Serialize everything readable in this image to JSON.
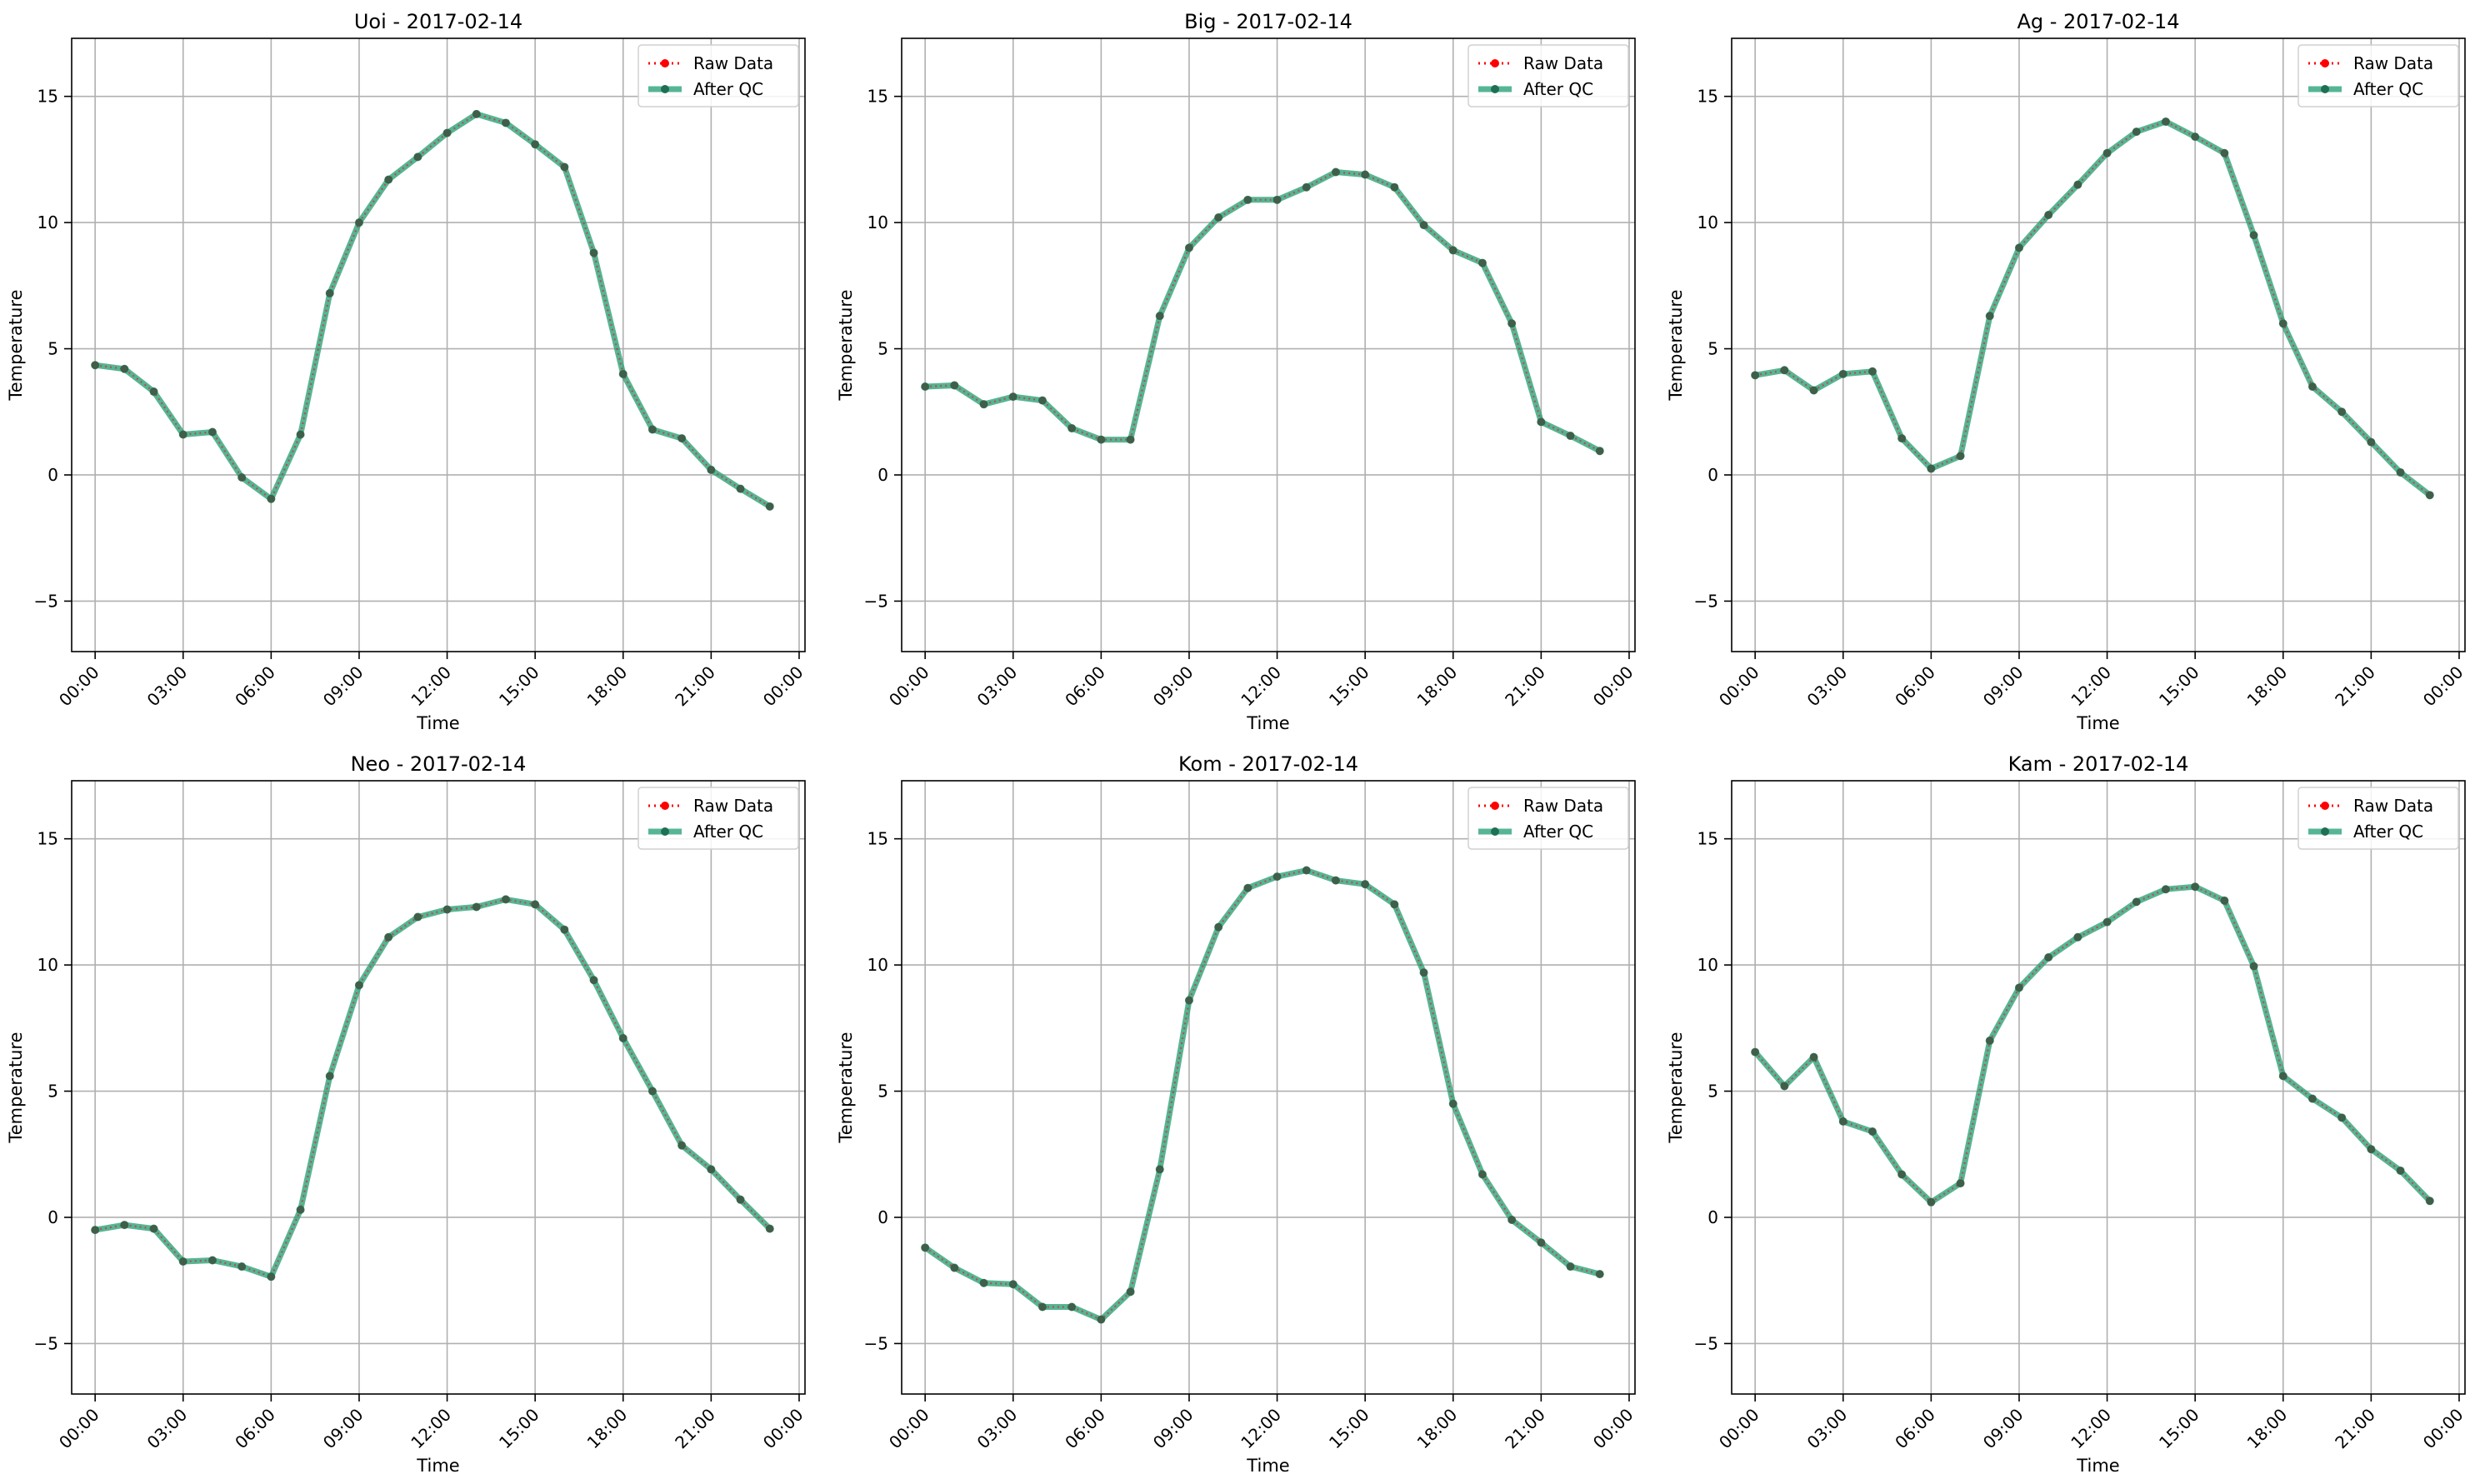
{
  "figure": {
    "layout": "2x3 grid"
  },
  "legend": {
    "raw_label": "Raw Data",
    "qc_label": "After QC"
  },
  "colors": {
    "raw": "#ff0000",
    "qc_line": "#2ca27a",
    "qc_marker": "#1f6f55",
    "grid": "#b0b0b0",
    "axes": "#000000"
  },
  "chart_data": [
    {
      "type": "line",
      "title": "Uoi - 2017-02-14",
      "xlabel": "Time",
      "ylabel": "Temperature",
      "x": [
        "00:00",
        "01:00",
        "02:00",
        "03:00",
        "04:00",
        "05:00",
        "06:00",
        "07:00",
        "08:00",
        "09:00",
        "10:00",
        "11:00",
        "12:00",
        "13:00",
        "14:00",
        "15:00",
        "16:00",
        "17:00",
        "18:00",
        "19:00",
        "20:00",
        "21:00",
        "22:00",
        "23:00"
      ],
      "x_ticks": [
        "00:00",
        "03:00",
        "06:00",
        "09:00",
        "12:00",
        "15:00",
        "18:00",
        "21:00",
        "00:00"
      ],
      "y_ticks": [
        -5,
        0,
        5,
        10,
        15
      ],
      "ylim": [
        -7,
        17.3
      ],
      "grid": true,
      "legend_position": "top-right",
      "series": [
        {
          "name": "Raw Data",
          "values": [
            4.35,
            4.2,
            3.3,
            1.6,
            1.7,
            -0.1,
            -0.95,
            1.6,
            7.2,
            10.0,
            11.7,
            12.6,
            13.55,
            14.3,
            13.95,
            13.1,
            12.2,
            8.8,
            4.0,
            1.8,
            1.45,
            0.2,
            -0.55,
            -1.25
          ]
        },
        {
          "name": "After QC",
          "values": [
            4.35,
            4.2,
            3.3,
            1.6,
            1.7,
            -0.1,
            -0.95,
            1.6,
            7.2,
            10.0,
            11.7,
            12.6,
            13.55,
            14.3,
            13.95,
            13.1,
            12.2,
            8.8,
            4.0,
            1.8,
            1.45,
            0.2,
            -0.55,
            -1.25
          ]
        }
      ]
    },
    {
      "type": "line",
      "title": "Big - 2017-02-14",
      "xlabel": "Time",
      "ylabel": "Temperature",
      "x": [
        "00:00",
        "01:00",
        "02:00",
        "03:00",
        "04:00",
        "05:00",
        "06:00",
        "07:00",
        "08:00",
        "09:00",
        "10:00",
        "11:00",
        "12:00",
        "13:00",
        "14:00",
        "15:00",
        "16:00",
        "17:00",
        "18:00",
        "19:00",
        "20:00",
        "21:00",
        "22:00",
        "23:00"
      ],
      "x_ticks": [
        "00:00",
        "03:00",
        "06:00",
        "09:00",
        "12:00",
        "15:00",
        "18:00",
        "21:00",
        "00:00"
      ],
      "y_ticks": [
        -5,
        0,
        5,
        10,
        15
      ],
      "ylim": [
        -7,
        17.3
      ],
      "grid": true,
      "legend_position": "top-right",
      "series": [
        {
          "name": "Raw Data",
          "values": [
            3.5,
            3.55,
            2.8,
            3.1,
            2.95,
            1.85,
            1.4,
            1.4,
            6.3,
            9.0,
            10.2,
            10.9,
            10.9,
            11.4,
            12.0,
            11.9,
            11.4,
            9.9,
            8.9,
            8.4,
            6.0,
            2.1,
            1.55,
            0.95
          ]
        },
        {
          "name": "After QC",
          "values": [
            3.5,
            3.55,
            2.8,
            3.1,
            2.95,
            1.85,
            1.4,
            1.4,
            6.3,
            9.0,
            10.2,
            10.9,
            10.9,
            11.4,
            12.0,
            11.9,
            11.4,
            9.9,
            8.9,
            8.4,
            6.0,
            2.1,
            1.55,
            0.95
          ]
        }
      ]
    },
    {
      "type": "line",
      "title": "Ag - 2017-02-14",
      "xlabel": "Time",
      "ylabel": "Temperature",
      "x": [
        "00:00",
        "01:00",
        "02:00",
        "03:00",
        "04:00",
        "05:00",
        "06:00",
        "07:00",
        "08:00",
        "09:00",
        "10:00",
        "11:00",
        "12:00",
        "13:00",
        "14:00",
        "15:00",
        "16:00",
        "17:00",
        "18:00",
        "19:00",
        "20:00",
        "21:00",
        "22:00",
        "23:00"
      ],
      "x_ticks": [
        "00:00",
        "03:00",
        "06:00",
        "09:00",
        "12:00",
        "15:00",
        "18:00",
        "21:00",
        "00:00"
      ],
      "y_ticks": [
        -5,
        0,
        5,
        10,
        15
      ],
      "ylim": [
        -7,
        17.3
      ],
      "grid": true,
      "legend_position": "top-right",
      "series": [
        {
          "name": "Raw Data",
          "values": [
            3.95,
            4.15,
            3.35,
            4.0,
            4.1,
            1.45,
            0.25,
            0.75,
            6.3,
            9.0,
            10.3,
            11.5,
            12.75,
            13.6,
            14.0,
            13.4,
            12.75,
            9.5,
            6.0,
            3.5,
            2.5,
            1.3,
            0.1,
            -0.8
          ]
        },
        {
          "name": "After QC",
          "values": [
            3.95,
            4.15,
            3.35,
            4.0,
            4.1,
            1.45,
            0.25,
            0.75,
            6.3,
            9.0,
            10.3,
            11.5,
            12.75,
            13.6,
            14.0,
            13.4,
            12.75,
            9.5,
            6.0,
            3.5,
            2.5,
            1.3,
            0.1,
            -0.8
          ]
        }
      ]
    },
    {
      "type": "line",
      "title": "Neo - 2017-02-14",
      "xlabel": "Time",
      "ylabel": "Temperature",
      "x": [
        "00:00",
        "01:00",
        "02:00",
        "03:00",
        "04:00",
        "05:00",
        "06:00",
        "07:00",
        "08:00",
        "09:00",
        "10:00",
        "11:00",
        "12:00",
        "13:00",
        "14:00",
        "15:00",
        "16:00",
        "17:00",
        "18:00",
        "19:00",
        "20:00",
        "21:00",
        "22:00",
        "23:00"
      ],
      "x_ticks": [
        "00:00",
        "03:00",
        "06:00",
        "09:00",
        "12:00",
        "15:00",
        "18:00",
        "21:00",
        "00:00"
      ],
      "y_ticks": [
        -5,
        0,
        5,
        10,
        15
      ],
      "ylim": [
        -7,
        17.3
      ],
      "grid": true,
      "legend_position": "top-right",
      "series": [
        {
          "name": "Raw Data",
          "values": [
            -0.5,
            -0.3,
            -0.45,
            -1.75,
            -1.7,
            -1.95,
            -2.35,
            0.3,
            5.6,
            9.2,
            11.1,
            11.9,
            12.2,
            12.3,
            12.6,
            12.4,
            11.4,
            9.4,
            7.1,
            5.0,
            2.85,
            1.9,
            0.7,
            -0.45
          ]
        },
        {
          "name": "After QC",
          "values": [
            -0.5,
            -0.3,
            -0.45,
            -1.75,
            -1.7,
            -1.95,
            -2.35,
            0.3,
            5.6,
            9.2,
            11.1,
            11.9,
            12.2,
            12.3,
            12.6,
            12.4,
            11.4,
            9.4,
            7.1,
            5.0,
            2.85,
            1.9,
            0.7,
            -0.45
          ]
        }
      ]
    },
    {
      "type": "line",
      "title": "Kom - 2017-02-14",
      "xlabel": "Time",
      "ylabel": "Temperature",
      "x": [
        "00:00",
        "01:00",
        "02:00",
        "03:00",
        "04:00",
        "05:00",
        "06:00",
        "07:00",
        "08:00",
        "09:00",
        "10:00",
        "11:00",
        "12:00",
        "13:00",
        "14:00",
        "15:00",
        "16:00",
        "17:00",
        "18:00",
        "19:00",
        "20:00",
        "21:00",
        "22:00",
        "23:00"
      ],
      "x_ticks": [
        "00:00",
        "03:00",
        "06:00",
        "09:00",
        "12:00",
        "15:00",
        "18:00",
        "21:00",
        "00:00"
      ],
      "y_ticks": [
        -5,
        0,
        5,
        10,
        15
      ],
      "ylim": [
        -7,
        17.3
      ],
      "grid": true,
      "legend_position": "top-right",
      "series": [
        {
          "name": "Raw Data",
          "values": [
            -1.2,
            -2.0,
            -2.6,
            -2.65,
            -3.55,
            -3.55,
            -4.05,
            -2.95,
            1.9,
            8.6,
            11.5,
            13.05,
            13.5,
            13.75,
            13.35,
            13.2,
            12.4,
            9.7,
            4.5,
            1.7,
            -0.1,
            -1.0,
            -1.95,
            -2.25
          ]
        },
        {
          "name": "After QC",
          "values": [
            -1.2,
            -2.0,
            -2.6,
            -2.65,
            -3.55,
            -3.55,
            -4.05,
            -2.95,
            1.9,
            8.6,
            11.5,
            13.05,
            13.5,
            13.75,
            13.35,
            13.2,
            12.4,
            9.7,
            4.5,
            1.7,
            -0.1,
            -1.0,
            -1.95,
            -2.25
          ]
        }
      ]
    },
    {
      "type": "line",
      "title": "Kam - 2017-02-14",
      "xlabel": "Time",
      "ylabel": "Temperature",
      "x": [
        "00:00",
        "01:00",
        "02:00",
        "03:00",
        "04:00",
        "05:00",
        "06:00",
        "07:00",
        "08:00",
        "09:00",
        "10:00",
        "11:00",
        "12:00",
        "13:00",
        "14:00",
        "15:00",
        "16:00",
        "17:00",
        "18:00",
        "19:00",
        "20:00",
        "21:00",
        "22:00",
        "23:00"
      ],
      "x_ticks": [
        "00:00",
        "03:00",
        "06:00",
        "09:00",
        "12:00",
        "15:00",
        "18:00",
        "21:00",
        "00:00"
      ],
      "y_ticks": [
        -5,
        0,
        5,
        10,
        15
      ],
      "ylim": [
        -7,
        17.3
      ],
      "grid": true,
      "legend_position": "top-right",
      "series": [
        {
          "name": "Raw Data",
          "values": [
            6.55,
            5.2,
            6.35,
            3.8,
            3.4,
            1.7,
            0.6,
            1.35,
            7.0,
            9.1,
            10.3,
            11.1,
            11.7,
            12.5,
            13.0,
            13.1,
            12.55,
            9.95,
            5.6,
            4.7,
            3.95,
            2.7,
            1.85,
            0.65
          ]
        },
        {
          "name": "After QC",
          "values": [
            6.55,
            5.2,
            6.35,
            3.8,
            3.4,
            1.7,
            0.6,
            1.35,
            7.0,
            9.1,
            10.3,
            11.1,
            11.7,
            12.5,
            13.0,
            13.1,
            12.55,
            9.95,
            5.6,
            4.7,
            3.95,
            2.7,
            1.85,
            0.65
          ]
        }
      ]
    }
  ]
}
